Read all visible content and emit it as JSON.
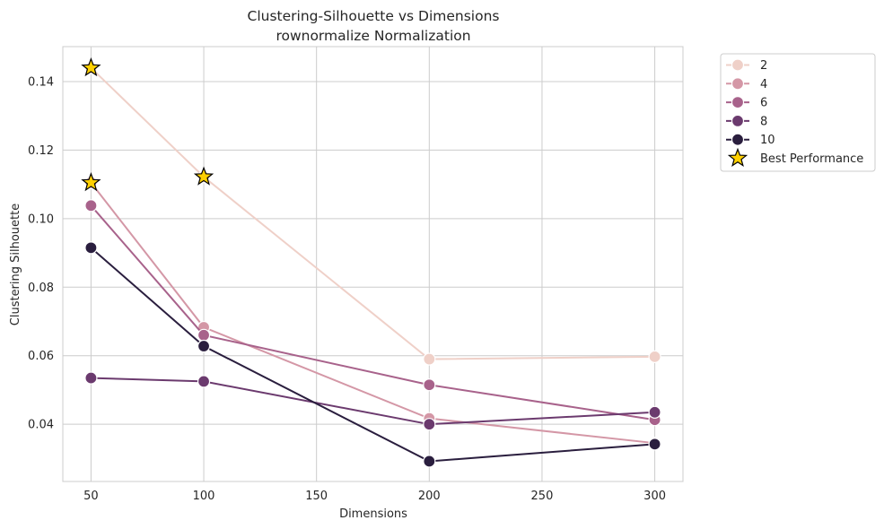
{
  "chart_data": {
    "type": "line",
    "title": "Clustering-Silhouette vs Dimensions",
    "subtitle": "rownormalize Normalization",
    "xlabel": "Dimensions",
    "ylabel": "Clustering Silhouette",
    "xlim": [
      37.5,
      312.5
    ],
    "ylim": [
      0.0233,
      0.1502
    ],
    "xticks": [
      50,
      100,
      150,
      200,
      250,
      300
    ],
    "yticks": [
      0.04,
      0.06,
      0.08,
      0.1,
      0.12,
      0.14
    ],
    "ytick_labels": [
      "0.04",
      "0.06",
      "0.08",
      "0.10",
      "0.12",
      "0.14"
    ],
    "grid": true,
    "legend_position": "outside-right-top",
    "x": [
      50,
      100,
      200,
      300
    ],
    "series": [
      {
        "name": "2",
        "color": "#efd0c8",
        "values": [
          0.144,
          0.1122,
          0.059,
          0.0597
        ]
      },
      {
        "name": "4",
        "color": "#d497a6",
        "values": [
          0.1105,
          0.0683,
          0.0417,
          0.0345
        ]
      },
      {
        "name": "6",
        "color": "#a8628b",
        "values": [
          0.1038,
          0.066,
          0.0515,
          0.0413
        ]
      },
      {
        "name": "8",
        "color": "#6b3a6e",
        "values": [
          0.0535,
          0.0525,
          0.04,
          0.0435
        ]
      },
      {
        "name": "10",
        "color": "#2a1e3e",
        "values": [
          0.0915,
          0.0628,
          0.0292,
          0.0342
        ]
      }
    ],
    "best_performance": {
      "label": "Best Performance",
      "color": "#ffd000",
      "points": [
        {
          "x": 50,
          "y": 0.144
        },
        {
          "x": 50,
          "y": 0.1105
        },
        {
          "x": 100,
          "y": 0.1122
        }
      ]
    }
  }
}
